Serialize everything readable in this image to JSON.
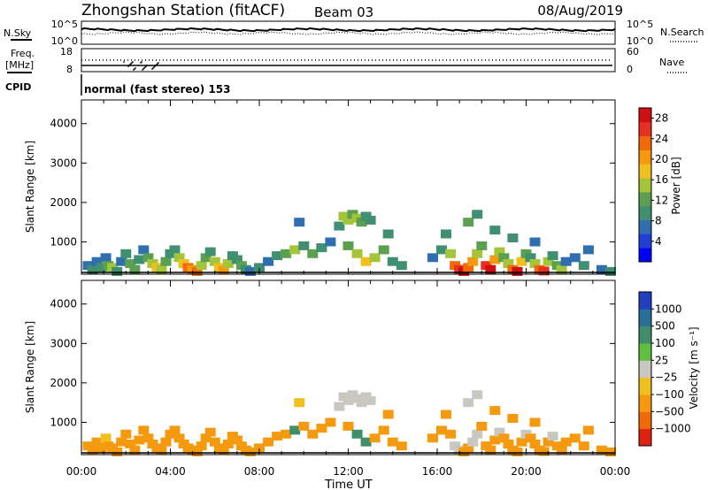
{
  "header": {
    "station": "Zhongshan Station (fitACF)",
    "beam": "Beam 03",
    "date": "08/Aug/2019"
  },
  "top_panels": {
    "nsky": {
      "label": "N.Sky",
      "ticks": [
        "10^5",
        "10^0"
      ]
    },
    "nsearch": {
      "label": "N.Search",
      "ticks": [
        "10^5",
        "10^0"
      ]
    },
    "freq": {
      "label_line1": "Freq.",
      "label_line2": "[MHz]",
      "ticks": [
        "18",
        "8"
      ]
    },
    "nave": {
      "label": "Nave",
      "ticks": [
        "60",
        "0"
      ]
    },
    "cpid": {
      "label": "CPID",
      "value": "normal (fast stereo) 153"
    }
  },
  "chart_data": [
    {
      "type": "heatmap",
      "name": "power",
      "ylabel": "Slant Range [km]",
      "xlabel": "Time UT",
      "xlim": [
        0,
        24
      ],
      "ylim": [
        180,
        4600
      ],
      "x_ticks": [
        "00:00",
        "04:00",
        "08:00",
        "12:00",
        "16:00",
        "20:00",
        "00:00"
      ],
      "y_ticks": [
        "1000",
        "2000",
        "3000",
        "4000"
      ],
      "colorbar": {
        "label": "Power [dB]",
        "ticks": [
          "4",
          "8",
          "12",
          "16",
          "20",
          "24",
          "28"
        ],
        "range": [
          0,
          30
        ],
        "colors": [
          "#0000ff",
          "#1f3fd6",
          "#2f6fb0",
          "#3f8f70",
          "#5aa050",
          "#a4c53a",
          "#f0c020",
          "#f59a0f",
          "#f06a0a",
          "#e83020",
          "#d01010"
        ]
      },
      "cells": [
        [
          0.3,
          400,
          8
        ],
        [
          0.5,
          300,
          9
        ],
        [
          0.7,
          500,
          8
        ],
        [
          0.9,
          350,
          10
        ],
        [
          1.1,
          600,
          7
        ],
        [
          1.2,
          400,
          12
        ],
        [
          1.4,
          350,
          14
        ],
        [
          1.6,
          250,
          10
        ],
        [
          1.8,
          500,
          8
        ],
        [
          2.0,
          700,
          9
        ],
        [
          2.2,
          450,
          11
        ],
        [
          2.4,
          300,
          12
        ],
        [
          2.6,
          550,
          10
        ],
        [
          2.8,
          800,
          8
        ],
        [
          3.0,
          600,
          12
        ],
        [
          3.2,
          450,
          16
        ],
        [
          3.4,
          350,
          18
        ],
        [
          3.6,
          300,
          14
        ],
        [
          3.8,
          500,
          12
        ],
        [
          4.0,
          700,
          10
        ],
        [
          4.2,
          800,
          9
        ],
        [
          4.4,
          600,
          14
        ],
        [
          4.6,
          450,
          18
        ],
        [
          4.8,
          350,
          22
        ],
        [
          5.0,
          300,
          20
        ],
        [
          5.2,
          250,
          24
        ],
        [
          5.4,
          400,
          16
        ],
        [
          5.6,
          600,
          12
        ],
        [
          5.8,
          750,
          10
        ],
        [
          6.0,
          500,
          14
        ],
        [
          6.2,
          350,
          18
        ],
        [
          6.4,
          280,
          20
        ],
        [
          6.6,
          450,
          14
        ],
        [
          6.8,
          650,
          10
        ],
        [
          7.0,
          550,
          9
        ],
        [
          7.2,
          400,
          12
        ],
        [
          7.4,
          300,
          10
        ],
        [
          7.6,
          250,
          8
        ],
        [
          8.0,
          350,
          9
        ],
        [
          8.4,
          500,
          8
        ],
        [
          8.8,
          650,
          9
        ],
        [
          9.2,
          700,
          12
        ],
        [
          9.6,
          800,
          14
        ],
        [
          9.8,
          1500,
          8
        ],
        [
          10.0,
          900,
          10
        ],
        [
          10.4,
          700,
          12
        ],
        [
          10.8,
          850,
          9
        ],
        [
          11.2,
          1000,
          8
        ],
        [
          11.6,
          1400,
          10
        ],
        [
          11.8,
          1650,
          14
        ],
        [
          12.0,
          1550,
          16
        ],
        [
          12.2,
          1700,
          12
        ],
        [
          12.4,
          1600,
          15
        ],
        [
          12.6,
          1500,
          13
        ],
        [
          12.8,
          1650,
          10
        ],
        [
          13.0,
          1550,
          9
        ],
        [
          12.0,
          900,
          12
        ],
        [
          12.4,
          700,
          14
        ],
        [
          12.8,
          500,
          18
        ],
        [
          13.2,
          600,
          16
        ],
        [
          13.6,
          800,
          12
        ],
        [
          13.8,
          1200,
          9
        ],
        [
          14.0,
          500,
          10
        ],
        [
          14.4,
          400,
          9
        ],
        [
          15.8,
          600,
          8
        ],
        [
          16.2,
          800,
          10
        ],
        [
          16.4,
          1200,
          9
        ],
        [
          16.6,
          700,
          14
        ],
        [
          16.8,
          400,
          22
        ],
        [
          17.0,
          300,
          26
        ],
        [
          17.2,
          250,
          28
        ],
        [
          17.4,
          350,
          24
        ],
        [
          17.6,
          500,
          20
        ],
        [
          17.8,
          700,
          16
        ],
        [
          18.0,
          900,
          12
        ],
        [
          18.2,
          400,
          26
        ],
        [
          18.4,
          300,
          28
        ],
        [
          18.6,
          550,
          20
        ],
        [
          18.8,
          750,
          14
        ],
        [
          19.0,
          600,
          12
        ],
        [
          19.2,
          450,
          16
        ],
        [
          19.4,
          300,
          24
        ],
        [
          19.6,
          250,
          28
        ],
        [
          19.8,
          500,
          18
        ],
        [
          20.0,
          700,
          12
        ],
        [
          20.2,
          600,
          10
        ],
        [
          20.4,
          450,
          14
        ],
        [
          20.6,
          300,
          22
        ],
        [
          20.8,
          260,
          26
        ],
        [
          21.0,
          500,
          14
        ],
        [
          21.2,
          650,
          10
        ],
        [
          21.4,
          400,
          12
        ],
        [
          21.6,
          300,
          16
        ],
        [
          21.8,
          500,
          8
        ],
        [
          22.2,
          600,
          8
        ],
        [
          22.6,
          400,
          9
        ],
        [
          17.4,
          1500,
          12
        ],
        [
          17.8,
          1700,
          9
        ],
        [
          18.6,
          1300,
          10
        ],
        [
          19.4,
          1100,
          9
        ],
        [
          20.4,
          1000,
          8
        ],
        [
          23.4,
          300,
          8
        ],
        [
          23.8,
          250,
          9
        ],
        [
          22.8,
          800,
          8
        ]
      ]
    },
    {
      "type": "heatmap",
      "name": "velocity",
      "ylabel": "Slant Range [km]",
      "xlabel": "Time UT",
      "xlim": [
        0,
        24
      ],
      "ylim": [
        180,
        4600
      ],
      "x_ticks": [
        "00:00",
        "04:00",
        "08:00",
        "12:00",
        "16:00",
        "20:00",
        "00:00"
      ],
      "y_ticks": [
        "1000",
        "2000",
        "3000",
        "4000"
      ],
      "colorbar": {
        "label": "Velocity [m s⁻¹]",
        "ticks": [
          "1000",
          "500",
          "100",
          "25",
          "−25",
          "−100",
          "−500",
          "−1000"
        ],
        "colors": [
          "#2040c0",
          "#2a6e9a",
          "#3f8f6a",
          "#5fbf40",
          "#c8c8c0",
          "#f0c020",
          "#f59a0f",
          "#f06a0a",
          "#e02010"
        ]
      },
      "cells": [
        [
          0.3,
          400,
          -150
        ],
        [
          0.5,
          300,
          -300
        ],
        [
          0.7,
          500,
          -120
        ],
        [
          0.9,
          350,
          -200
        ],
        [
          1.1,
          600,
          -100
        ],
        [
          1.2,
          400,
          -250
        ],
        [
          1.4,
          350,
          -300
        ],
        [
          1.6,
          250,
          -150
        ],
        [
          1.8,
          500,
          -120
        ],
        [
          2.0,
          700,
          -200
        ],
        [
          2.2,
          450,
          -300
        ],
        [
          2.4,
          300,
          -400
        ],
        [
          2.6,
          550,
          -200
        ],
        [
          2.8,
          800,
          -150
        ],
        [
          3.0,
          600,
          -300
        ],
        [
          3.2,
          450,
          -400
        ],
        [
          3.4,
          350,
          -350
        ],
        [
          3.6,
          300,
          -250
        ],
        [
          3.8,
          500,
          -200
        ],
        [
          4.0,
          700,
          -300
        ],
        [
          4.2,
          800,
          -250
        ],
        [
          4.4,
          600,
          -350
        ],
        [
          4.6,
          450,
          -400
        ],
        [
          4.8,
          350,
          -450
        ],
        [
          5.0,
          300,
          -300
        ],
        [
          5.2,
          250,
          -350
        ],
        [
          5.4,
          400,
          -250
        ],
        [
          5.6,
          600,
          -200
        ],
        [
          5.8,
          750,
          -150
        ],
        [
          6.0,
          500,
          -250
        ],
        [
          6.2,
          350,
          -300
        ],
        [
          6.4,
          280,
          -350
        ],
        [
          6.6,
          450,
          -200
        ],
        [
          6.8,
          650,
          -150
        ],
        [
          7.0,
          550,
          -120
        ],
        [
          7.2,
          400,
          -200
        ],
        [
          7.4,
          300,
          -250
        ],
        [
          7.6,
          250,
          -180
        ],
        [
          8.0,
          350,
          -150
        ],
        [
          8.4,
          500,
          -200
        ],
        [
          8.8,
          650,
          -250
        ],
        [
          9.2,
          700,
          -300
        ],
        [
          9.6,
          800,
          150
        ],
        [
          9.8,
          1500,
          -100
        ],
        [
          10.0,
          900,
          -200
        ],
        [
          10.4,
          700,
          -250
        ],
        [
          10.8,
          850,
          -150
        ],
        [
          11.2,
          1000,
          -200
        ],
        [
          11.6,
          1400,
          0
        ],
        [
          11.8,
          1650,
          10
        ],
        [
          12.0,
          1550,
          -5
        ],
        [
          12.2,
          1700,
          0
        ],
        [
          12.4,
          1600,
          5
        ],
        [
          12.6,
          1500,
          -10
        ],
        [
          12.8,
          1650,
          0
        ],
        [
          13.0,
          1550,
          0
        ],
        [
          12.0,
          900,
          -250
        ],
        [
          12.4,
          700,
          200
        ],
        [
          12.8,
          500,
          300
        ],
        [
          13.2,
          600,
          -300
        ],
        [
          13.6,
          800,
          -200
        ],
        [
          13.8,
          1200,
          -150
        ],
        [
          14.0,
          500,
          -250
        ],
        [
          14.4,
          400,
          -200
        ],
        [
          15.8,
          600,
          -200
        ],
        [
          16.2,
          800,
          -150
        ],
        [
          16.4,
          1200,
          -120
        ],
        [
          16.6,
          700,
          -300
        ],
        [
          16.8,
          400,
          0
        ],
        [
          17.0,
          300,
          5
        ],
        [
          17.2,
          250,
          -350
        ],
        [
          17.4,
          350,
          -400
        ],
        [
          17.6,
          500,
          0
        ],
        [
          17.8,
          700,
          10
        ],
        [
          18.0,
          900,
          -250
        ],
        [
          18.2,
          400,
          -450
        ],
        [
          18.4,
          300,
          -500
        ],
        [
          18.6,
          550,
          -300
        ],
        [
          18.8,
          750,
          0
        ],
        [
          19.0,
          600,
          -200
        ],
        [
          19.2,
          450,
          -350
        ],
        [
          19.4,
          300,
          -400
        ],
        [
          19.6,
          250,
          -450
        ],
        [
          19.8,
          500,
          -300
        ],
        [
          20.0,
          700,
          0
        ],
        [
          20.2,
          600,
          -200
        ],
        [
          20.4,
          450,
          -300
        ],
        [
          20.6,
          300,
          -400
        ],
        [
          20.8,
          260,
          -450
        ],
        [
          21.0,
          500,
          -250
        ],
        [
          21.2,
          650,
          0
        ],
        [
          21.4,
          400,
          -200
        ],
        [
          21.6,
          300,
          -300
        ],
        [
          21.8,
          500,
          -150
        ],
        [
          22.2,
          600,
          -120
        ],
        [
          22.6,
          400,
          -150
        ],
        [
          17.4,
          1500,
          0
        ],
        [
          17.8,
          1700,
          5
        ],
        [
          18.6,
          1300,
          -150
        ],
        [
          19.4,
          1100,
          -120
        ],
        [
          20.4,
          1000,
          -150
        ],
        [
          23.4,
          300,
          -200
        ],
        [
          23.8,
          250,
          -150
        ],
        [
          22.8,
          800,
          -120
        ]
      ]
    }
  ]
}
